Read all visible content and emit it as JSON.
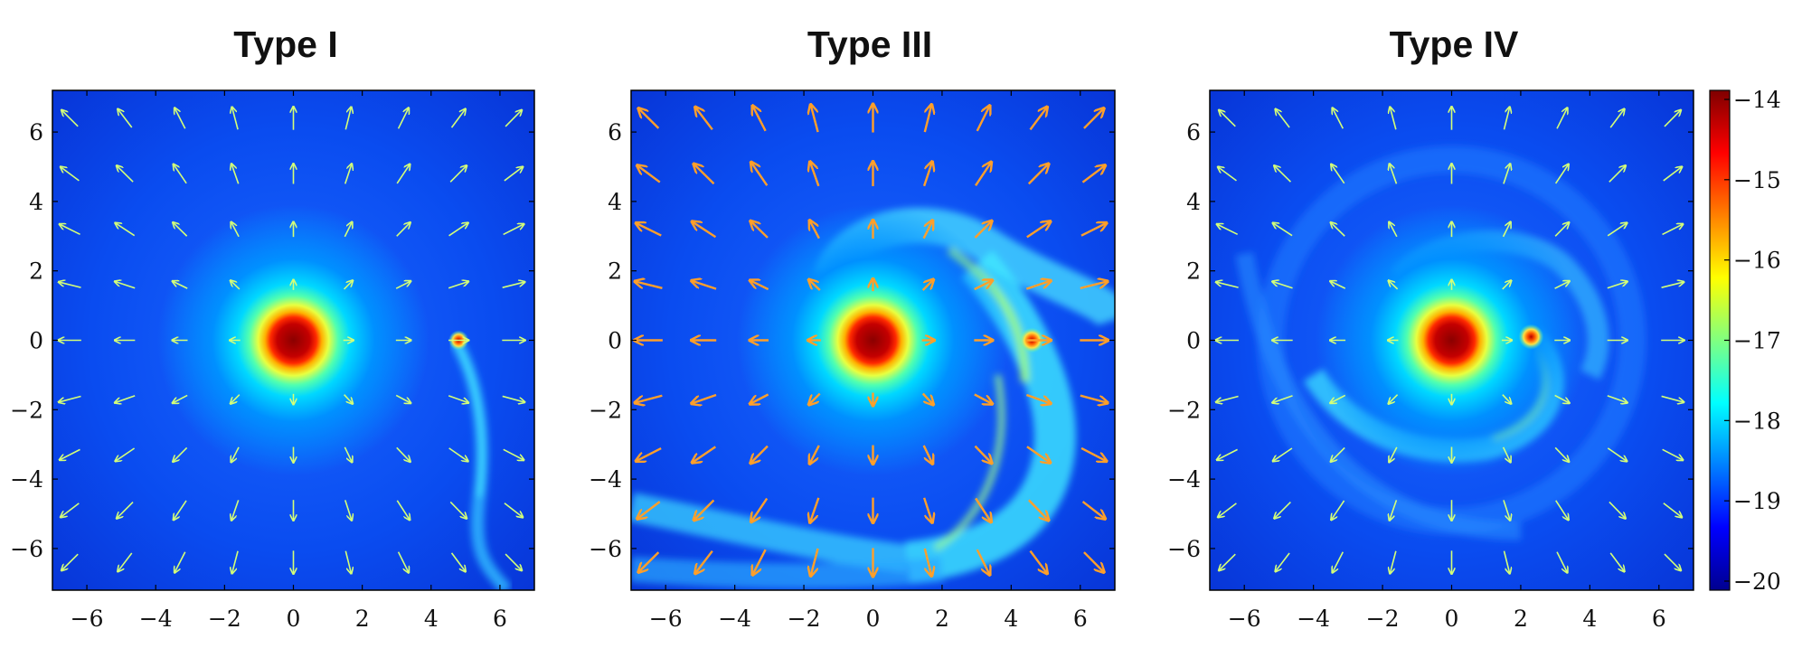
{
  "panels": [
    {
      "title": "Type I",
      "arrow_color": "#d4ff78",
      "planet_x": 4.8,
      "planet_y": 0.0,
      "style": "tail"
    },
    {
      "title": "Type III",
      "arrow_color": "#ff9f2a",
      "planet_x": 4.6,
      "planet_y": 0.0,
      "style": "wide"
    },
    {
      "title": "Type IV",
      "arrow_color": "#d4ff78",
      "planet_x": 2.3,
      "planet_y": 0.1,
      "style": "spiral"
    }
  ],
  "x_ticks": [
    "−6",
    "−4",
    "−2",
    "0",
    "2",
    "4",
    "6"
  ],
  "y_ticks": [
    "6",
    "4",
    "2",
    "0",
    "−2",
    "−4",
    "−6"
  ],
  "colorbar": {
    "ticks": [
      "−14",
      "−15",
      "−16",
      "−17",
      "−18",
      "−19",
      "−20"
    ],
    "colors": [
      "#7f0000",
      "#ff0000",
      "#ff8000",
      "#ffff00",
      "#80ff80",
      "#00ffff",
      "#0080ff",
      "#0000ff",
      "#00008f"
    ]
  }
}
